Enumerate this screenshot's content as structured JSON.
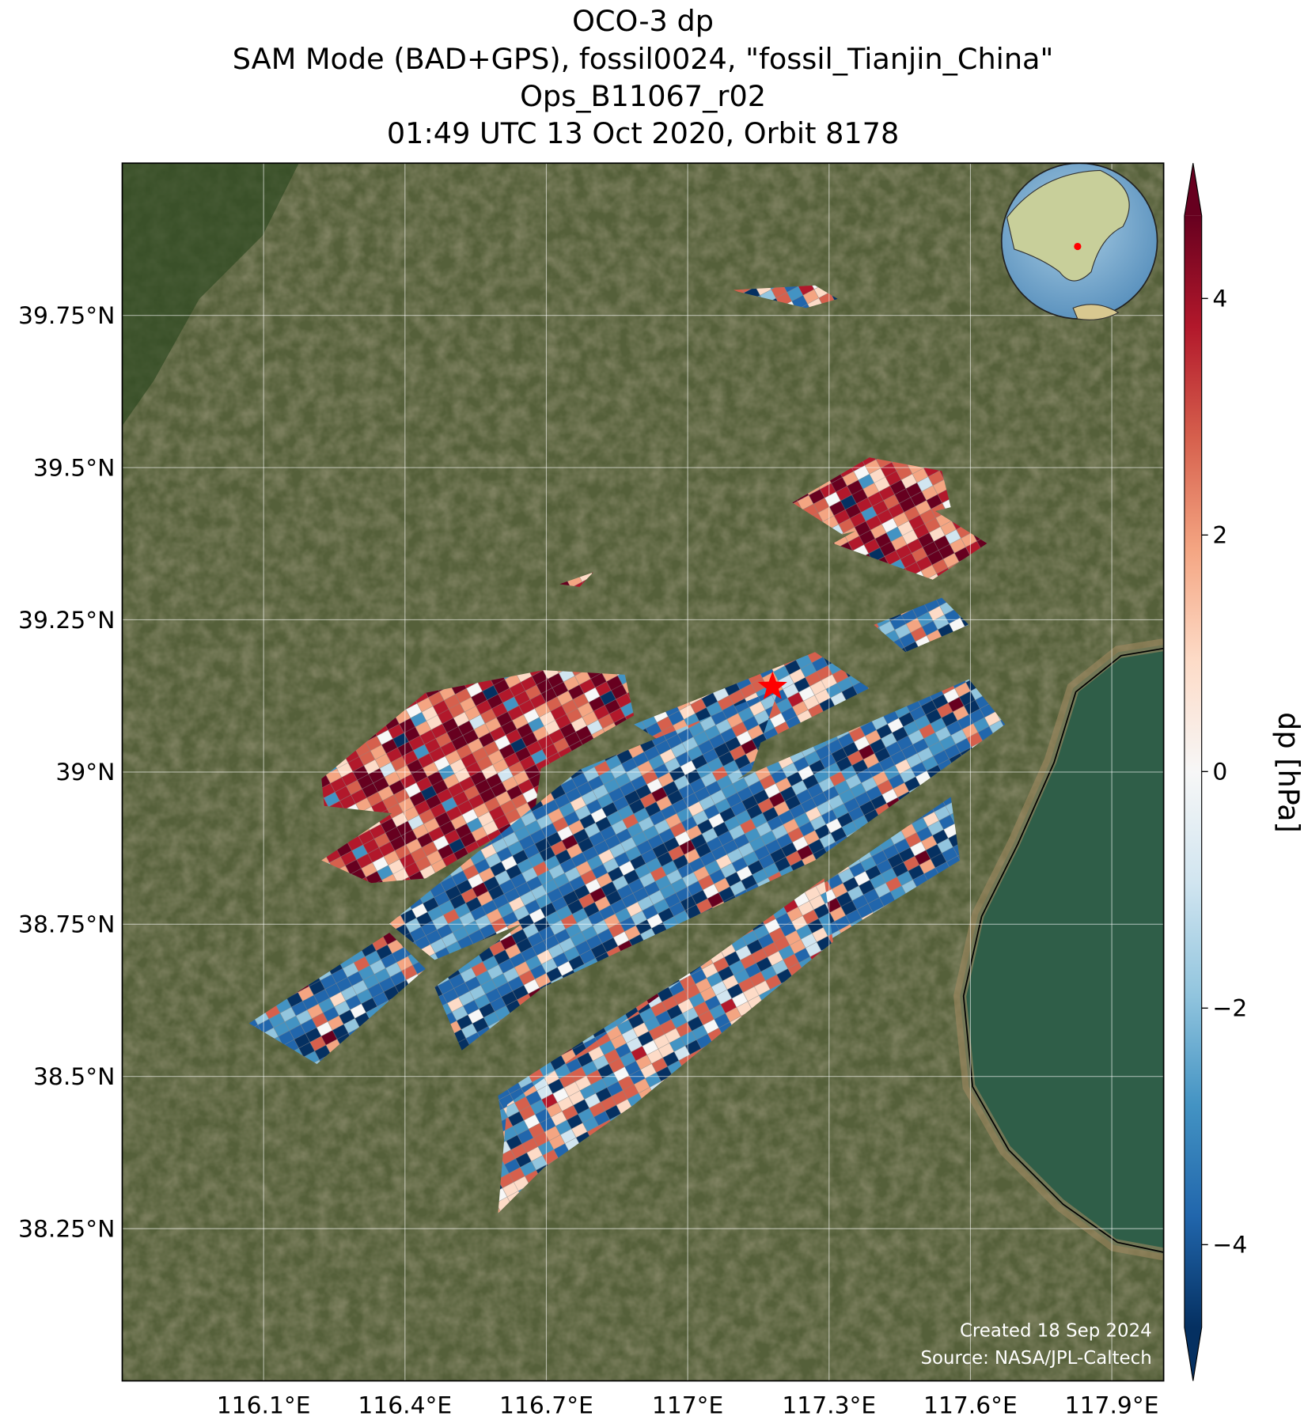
{
  "chart_data": {
    "type": "map",
    "title": [
      "OCO-3 dp",
      "SAM Mode (BAD+GPS), fossil0024, \"fossil_Tianjin_China\"",
      "Ops_B11067_r02",
      "01:49 UTC 13 Oct 2020, Orbit 8178"
    ],
    "xlim": [
      115.8,
      118.01
    ],
    "ylim": [
      38.0,
      40.0
    ],
    "xticks": [
      {
        "value": 116.1,
        "label": "116.1°E"
      },
      {
        "value": 116.4,
        "label": "116.4°E"
      },
      {
        "value": 116.7,
        "label": "116.7°E"
      },
      {
        "value": 117,
        "label": "117°E"
      },
      {
        "value": 117.3,
        "label": "117.3°E"
      },
      {
        "value": 117.6,
        "label": "117.6°E"
      },
      {
        "value": 117.9,
        "label": "117.9°E"
      }
    ],
    "yticks": [
      {
        "value": 38.25,
        "label": "38.25°N"
      },
      {
        "value": 38.5,
        "label": "38.5°N"
      },
      {
        "value": 38.75,
        "label": "38.75°N"
      },
      {
        "value": 39,
        "label": "39°N"
      },
      {
        "value": 39.25,
        "label": "39.25°N"
      },
      {
        "value": 39.5,
        "label": "39.5°N"
      },
      {
        "value": 39.75,
        "label": "39.75°N"
      }
    ],
    "grid": true,
    "site": {
      "lon": 117.18,
      "lat": 39.14,
      "color": "#ff0000"
    },
    "colorbar": {
      "label": "dp [hPa]",
      "clim": [
        -4.7,
        4.7
      ],
      "ticks": [
        {
          "value": -4,
          "label": "−4"
        },
        {
          "value": -2,
          "label": "−2"
        },
        0,
        2,
        4
      ],
      "colormap": [
        "#053061",
        "#2166ac",
        "#4393c3",
        "#92c5de",
        "#d1e5f0",
        "#f7f7f7",
        "#fddbc7",
        "#f4a582",
        "#d6604d",
        "#b2182b",
        "#67001f"
      ]
    },
    "footnote": [
      "Created 18 Sep 2024",
      "Source: NASA/JPL-Caltech"
    ]
  }
}
